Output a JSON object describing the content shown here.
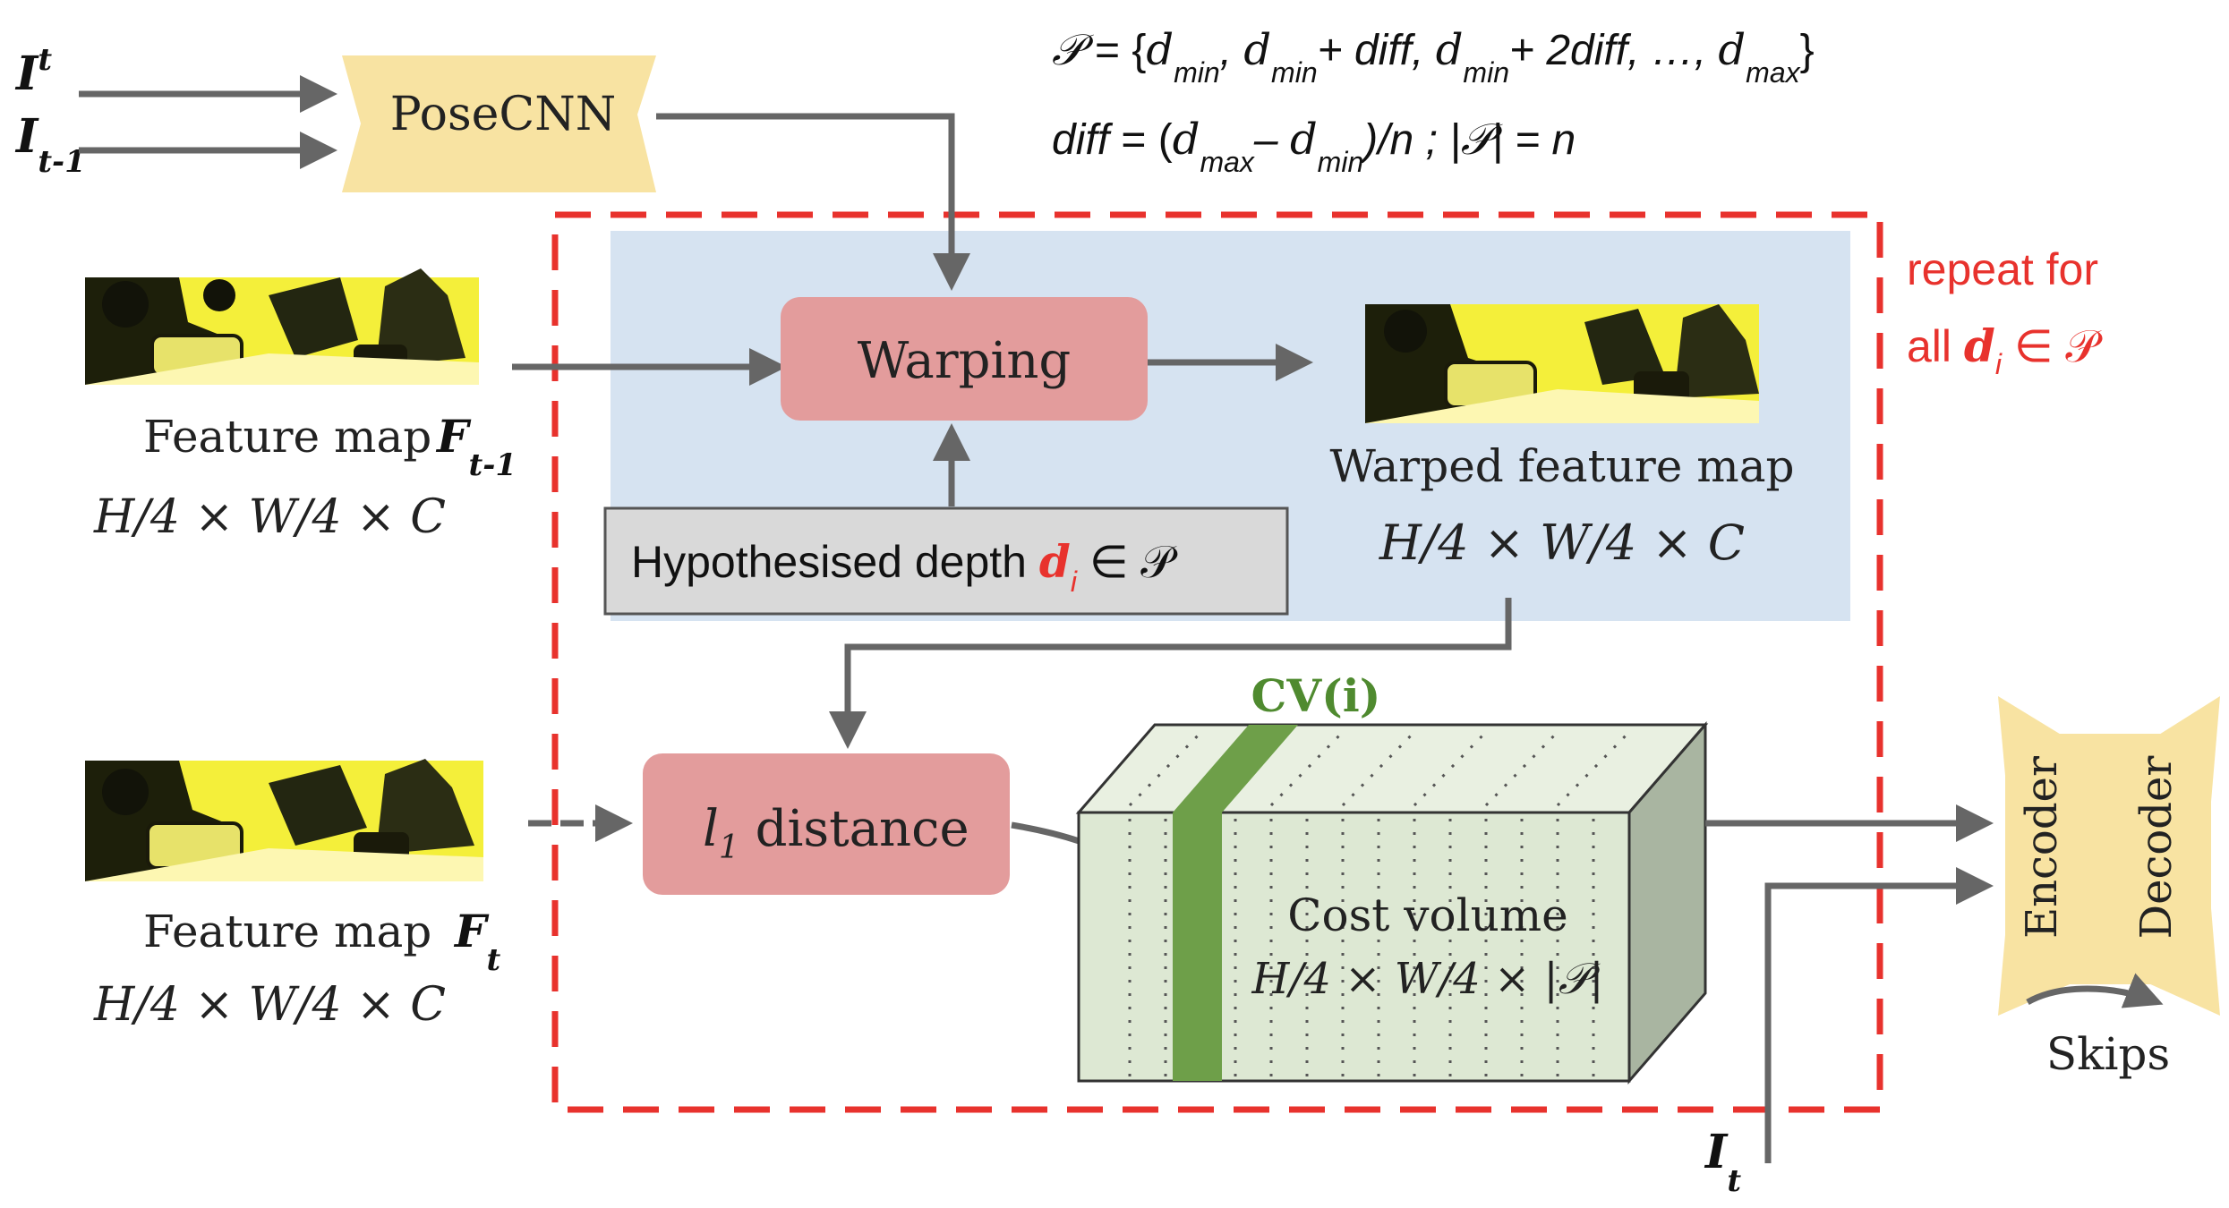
{
  "colors": {
    "arrow": "#666666",
    "red_accent": "#e8322d",
    "blue_region": "#d6e3f1",
    "pink_box": "#e39c9c",
    "yellow_box": "#f8e3a2",
    "gray_box": "#d9d9d9",
    "cost_front": "#dde8d3",
    "cost_top": "#e9f0e1",
    "cost_side": "#a9b5a1",
    "cv_slice": "#6e9f49",
    "cv_label": "#4f8a2f"
  },
  "inputs": {
    "it_top": "I",
    "it_top_sub": "t",
    "it_prev": "I",
    "it_prev_sub": "t-1",
    "it_bottom": "I",
    "it_bottom_sub": "t"
  },
  "posecnn": {
    "label": "PoseCNN"
  },
  "formula": {
    "line1": {
      "P": "𝒫",
      "eq": " = {",
      "d": "d",
      "min": "min",
      "max": "max",
      "sep1": ", ",
      "plus_diff": "+ diff, ",
      "plus_2diff": "+ 2diff, ",
      "ellipsis": "…, ",
      "close": "}"
    },
    "line2": {
      "diff": "diff",
      "eq_open": " = (",
      "minus": "– ",
      "div_n": ")/n ; |",
      "P": "𝒫",
      "end": "| = n"
    }
  },
  "repeat": {
    "line1": "repeat for",
    "line2_prefix": "all ",
    "d": "d",
    "sub": "i",
    "in_P": " ∈ 𝒫"
  },
  "warping": {
    "label": "Warping"
  },
  "hypothesised": {
    "prefix": "Hypothesised depth ",
    "d": "d",
    "sub": "i",
    "suffix": " ∈ 𝒫"
  },
  "feature_prev": {
    "label": "Feature map",
    "F": "F",
    "sub": "t-1",
    "dims": "H/4 × W/4 × C"
  },
  "feature_curr": {
    "label": "Feature map",
    "F": "F",
    "sub": "t",
    "dims": "H/4 × W/4 × C"
  },
  "warped": {
    "label": "Warped feature map",
    "dims": "H/4 × W/4 × C"
  },
  "l1": {
    "l": "l",
    "sub": "1",
    "rest": " distance"
  },
  "cost_volume": {
    "label": "Cost volume",
    "dims": "H/4 × W/4 × |𝒫|",
    "cv_label": "CV(i)"
  },
  "encdec": {
    "encoder": "Encoder",
    "decoder": "Decoder",
    "skips": "Skips"
  }
}
